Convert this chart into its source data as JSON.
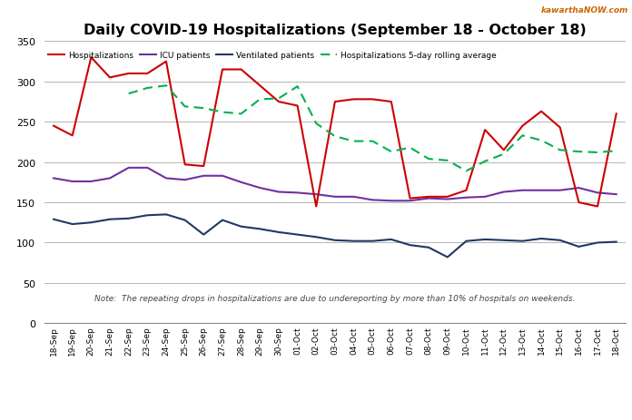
{
  "dates": [
    "18-Sep",
    "19-Sep",
    "20-Sep",
    "21-Sep",
    "22-Sep",
    "23-Sep",
    "24-Sep",
    "25-Sep",
    "26-Sep",
    "27-Sep",
    "28-Sep",
    "29-Sep",
    "30-Sep",
    "01-Oct",
    "02-Oct",
    "03-Oct",
    "04-Oct",
    "05-Oct",
    "06-Oct",
    "07-Oct",
    "08-Oct",
    "09-Oct",
    "10-Oct",
    "11-Oct",
    "12-Oct",
    "13-Oct",
    "14-Oct",
    "15-Oct",
    "16-Oct",
    "17-Oct",
    "18-Oct"
  ],
  "hospitalizations": [
    245,
    233,
    330,
    305,
    310,
    310,
    325,
    197,
    195,
    315,
    315,
    295,
    275,
    270,
    145,
    275,
    278,
    278,
    275,
    155,
    157,
    157,
    165,
    240,
    215,
    245,
    263,
    243,
    150,
    145,
    260
  ],
  "icu": [
    180,
    176,
    176,
    180,
    193,
    193,
    180,
    178,
    183,
    183,
    175,
    168,
    163,
    162,
    160,
    157,
    157,
    153,
    152,
    152,
    155,
    154,
    156,
    157,
    163,
    165,
    165,
    165,
    168,
    162,
    160
  ],
  "ventilated": [
    129,
    123,
    125,
    129,
    130,
    134,
    135,
    128,
    110,
    128,
    120,
    117,
    113,
    110,
    107,
    103,
    102,
    102,
    104,
    97,
    94,
    82,
    102,
    104,
    103,
    102,
    105,
    103,
    95,
    100,
    101
  ],
  "rolling_avg": [
    null,
    null,
    null,
    null,
    285,
    292,
    295,
    269,
    267,
    262,
    260,
    278,
    279,
    294,
    248,
    232,
    226,
    226,
    213,
    218,
    204,
    202,
    189,
    201,
    210,
    233,
    227,
    215,
    213,
    212,
    214
  ],
  "title": "Daily COVID-19 Hospitalizations (September 18 - October 18)",
  "note": "Note:  The repeating drops in hospitalizations are due to undereporting by more than 10% of hospitals on weekends.",
  "watermark": "kawarthaNOW.com",
  "ylim": [
    0,
    350
  ],
  "yticks": [
    0,
    50,
    100,
    150,
    200,
    250,
    300,
    350
  ],
  "hosp_color": "#cc0000",
  "icu_color": "#7030a0",
  "vent_color": "#1f3864",
  "rolling_color": "#00b050",
  "bg_color": "#ffffff",
  "grid_color": "#aaaaaa"
}
